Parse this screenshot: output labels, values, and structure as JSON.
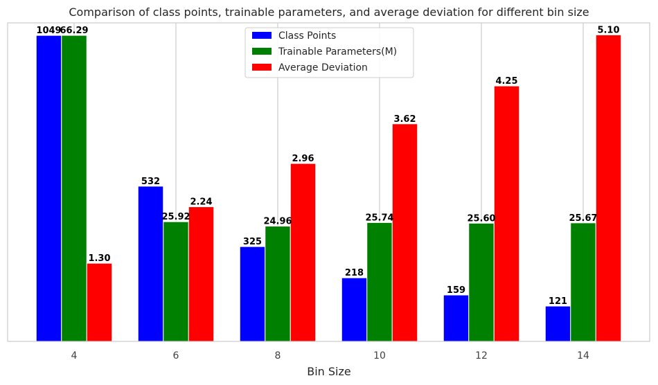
{
  "chart_data": {
    "type": "bar",
    "title": "Comparison of class points, trainable parameters, and average deviation for different bin size",
    "xlabel": "Bin Size",
    "ylabel": "",
    "categories": [
      "4",
      "6",
      "8",
      "10",
      "12",
      "14"
    ],
    "legend_position": "top-center",
    "grid": "vertical",
    "series": [
      {
        "name": "Class Points",
        "color": "#0000ff",
        "values": [
          1049,
          532,
          325,
          218,
          159,
          121
        ],
        "labels": [
          "1049",
          "532",
          "325",
          "218",
          "159",
          "121"
        ],
        "max": 1092
      },
      {
        "name": "Trainable Parameters(M)",
        "color": "#008000",
        "values": [
          66.29,
          25.92,
          24.96,
          25.74,
          25.6,
          25.67
        ],
        "labels": [
          "66.29",
          "25.92",
          "24.96",
          "25.74",
          "25.60",
          "25.67"
        ],
        "max": 69
      },
      {
        "name": "Average Deviation",
        "color": "#ff0000",
        "values": [
          1.3,
          2.24,
          2.96,
          3.62,
          4.25,
          5.1
        ],
        "labels": [
          "1.30",
          "2.24",
          "2.96",
          "3.62",
          "4.25",
          "5.10"
        ],
        "max": 5.3
      }
    ]
  }
}
